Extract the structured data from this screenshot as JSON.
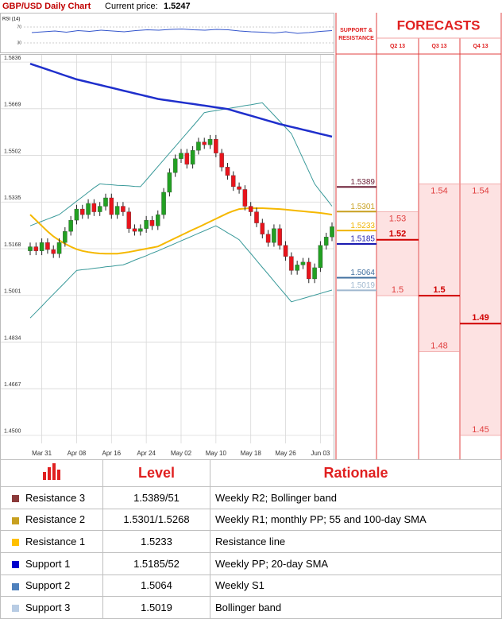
{
  "header": {
    "title": "GBP/USD Daily Chart",
    "price_label": "Current price:",
    "price": "1.5247"
  },
  "chart_data": [
    {
      "type": "line",
      "title": "RSI (14)",
      "color": "#3355cc",
      "ylim": [
        0,
        100
      ],
      "yticks": [
        70,
        30
      ],
      "values": [
        56,
        58,
        60,
        57,
        61,
        59,
        62,
        60,
        58,
        61,
        63,
        62,
        64,
        65,
        63,
        62,
        64,
        63,
        60,
        58,
        57,
        55,
        58,
        54,
        56,
        59,
        61
      ]
    },
    {
      "type": "candlestick",
      "up_color": "#22a022",
      "down_color": "#e8141c",
      "grid": true,
      "ylim": [
        1.4494,
        1.5859
      ],
      "yticks": [
        {
          "value": 1.45,
          "label": "1.4500"
        },
        1.4667,
        1.4834,
        1.5001,
        1.5168,
        1.5335,
        1.5502,
        1.5669,
        1.5836
      ],
      "categories": [
        null,
        null,
        "Mar 31",
        null,
        null,
        null,
        null,
        null,
        "Apr 08",
        null,
        null,
        null,
        null,
        null,
        "Apr 16",
        null,
        null,
        null,
        null,
        null,
        "Apr 24",
        null,
        null,
        null,
        null,
        null,
        "May 02",
        null,
        null,
        null,
        null,
        null,
        "May 10",
        null,
        null,
        null,
        null,
        null,
        "May 18",
        null,
        null,
        null,
        null,
        null,
        "May 26",
        null,
        null,
        null,
        null,
        null,
        "Jun 03",
        null,
        null
      ],
      "open": [
        1.516,
        1.5175,
        1.516,
        1.519,
        1.5165,
        1.515,
        1.519,
        1.523,
        1.527,
        1.531,
        1.529,
        1.533,
        1.53,
        1.532,
        1.535,
        1.529,
        1.532,
        1.53,
        1.524,
        1.523,
        1.524,
        1.527,
        1.525,
        1.529,
        1.537,
        1.544,
        1.549,
        1.551,
        1.547,
        1.552,
        1.555,
        1.554,
        1.556,
        1.551,
        1.546,
        1.543,
        1.539,
        1.538,
        1.532,
        1.53,
        1.526,
        1.522,
        1.519,
        1.524,
        1.518,
        1.514,
        1.509,
        1.511,
        1.512,
        1.506,
        1.51,
        1.518,
        1.521
      ],
      "high": [
        1.519,
        1.519,
        1.5205,
        1.5205,
        1.518,
        1.5205,
        1.5245,
        1.5285,
        1.5325,
        1.5325,
        1.5345,
        1.5345,
        1.5335,
        1.5365,
        1.5365,
        1.5335,
        1.5335,
        1.5315,
        1.5255,
        1.5255,
        1.5285,
        1.5285,
        1.5305,
        1.5385,
        1.5455,
        1.5505,
        1.5525,
        1.5525,
        1.5535,
        1.5565,
        1.5565,
        1.5575,
        1.5575,
        1.5525,
        1.5475,
        1.5445,
        1.5405,
        1.5395,
        1.5335,
        1.5315,
        1.5275,
        1.5235,
        1.5255,
        1.5255,
        1.5195,
        1.5155,
        1.5125,
        1.5135,
        1.5135,
        1.5115,
        1.5195,
        1.5225,
        1.5262
      ],
      "low": [
        1.5145,
        1.5145,
        1.5145,
        1.515,
        1.5135,
        1.5135,
        1.5175,
        1.5215,
        1.5255,
        1.5275,
        1.5275,
        1.5285,
        1.5285,
        1.5305,
        1.5275,
        1.5275,
        1.5285,
        1.5225,
        1.5215,
        1.5215,
        1.5225,
        1.5235,
        1.5235,
        1.5275,
        1.5355,
        1.5425,
        1.5475,
        1.5455,
        1.5455,
        1.5505,
        1.5525,
        1.5525,
        1.5495,
        1.5445,
        1.5415,
        1.5375,
        1.5365,
        1.5305,
        1.5285,
        1.5245,
        1.5205,
        1.5175,
        1.5175,
        1.5165,
        1.5125,
        1.5075,
        1.5075,
        1.5095,
        1.5045,
        1.5045,
        1.5085,
        1.5165,
        1.5195
      ],
      "close": [
        1.5175,
        1.516,
        1.519,
        1.5165,
        1.515,
        1.519,
        1.523,
        1.527,
        1.531,
        1.529,
        1.533,
        1.53,
        1.532,
        1.535,
        1.529,
        1.532,
        1.53,
        1.524,
        1.523,
        1.524,
        1.527,
        1.525,
        1.529,
        1.537,
        1.544,
        1.549,
        1.551,
        1.547,
        1.552,
        1.555,
        1.554,
        1.556,
        1.551,
        1.546,
        1.543,
        1.539,
        1.538,
        1.532,
        1.53,
        1.526,
        1.522,
        1.519,
        1.524,
        1.518,
        1.514,
        1.509,
        1.511,
        1.512,
        1.506,
        1.51,
        1.518,
        1.521,
        1.5247
      ],
      "series": [
        {
          "color": "#3a9a9a",
          "width": 1,
          "values": [
            1.525,
            1.5258,
            1.5266,
            1.5274,
            1.5282,
            1.529,
            1.5306,
            1.5322,
            1.5338,
            1.5354,
            1.537,
            1.5386,
            1.54,
            1.5398,
            1.5397,
            1.5395,
            1.5394,
            1.5393,
            1.5391,
            1.539,
            1.5414,
            1.5438,
            1.5462,
            1.5486,
            1.551,
            1.5534,
            1.5558,
            1.5582,
            1.5606,
            1.563,
            1.5655,
            1.5659,
            1.5662,
            1.5666,
            1.5669,
            1.5673,
            1.5676,
            1.568,
            1.5683,
            1.5687,
            1.569,
            1.5668,
            1.5646,
            1.5624,
            1.5602,
            1.558,
            1.5535,
            1.549,
            1.5445,
            1.54,
            1.5373,
            1.5347,
            1.532
          ]
        },
        {
          "color": "#3a9a9a",
          "width": 1,
          "values": [
            1.492,
            1.4941,
            1.4962,
            1.4984,
            1.5005,
            1.5026,
            1.5047,
            1.5069,
            1.509,
            1.5093,
            1.5095,
            1.5098,
            1.51,
            1.5103,
            1.5105,
            1.5108,
            1.511,
            1.5118,
            1.5127,
            1.5135,
            1.5143,
            1.5152,
            1.516,
            1.5169,
            1.5178,
            1.5187,
            1.5196,
            1.5205,
            1.5214,
            1.5223,
            1.5232,
            1.5241,
            1.525,
            1.5238,
            1.5225,
            1.5213,
            1.52,
            1.5175,
            1.5151,
            1.5126,
            1.5101,
            1.5077,
            1.5052,
            1.5027,
            1.5003,
            1.4978,
            1.4984,
            1.499,
            1.4996,
            1.5002,
            1.5008,
            1.5014,
            1.502
          ]
        },
        {
          "color": "#f5b800",
          "width": 2,
          "values": [
            1.529,
            1.527,
            1.525,
            1.523,
            1.5212,
            1.5198,
            1.5186,
            1.5175,
            1.5166,
            1.516,
            1.5156,
            1.5153,
            1.5151,
            1.515,
            1.515,
            1.515,
            1.5153,
            1.5156,
            1.516,
            1.5164,
            1.5168,
            1.5172,
            1.5176,
            1.5186,
            1.5196,
            1.5206,
            1.5216,
            1.5226,
            1.5236,
            1.5245,
            1.5255,
            1.5265,
            1.5275,
            1.5285,
            1.5295,
            1.5303,
            1.531,
            1.5312,
            1.5313,
            1.5313,
            1.5313,
            1.5312,
            1.5311,
            1.531,
            1.5308,
            1.5306,
            1.5304,
            1.5302,
            1.53,
            1.5298,
            1.5296,
            1.5293,
            1.529
          ]
        },
        {
          "color": "#1f2fcc",
          "width": 2.5,
          "values": [
            1.583,
            1.5823,
            1.5816,
            1.5809,
            1.5802,
            1.5795,
            1.5788,
            1.5781,
            1.5774,
            1.5769,
            1.5764,
            1.5759,
            1.5754,
            1.5749,
            1.5744,
            1.5739,
            1.5734,
            1.5729,
            1.5724,
            1.5719,
            1.5714,
            1.5709,
            1.5704,
            1.5701,
            1.5698,
            1.5695,
            1.5692,
            1.5689,
            1.5686,
            1.5683,
            1.568,
            1.5677,
            1.5674,
            1.5671,
            1.5668,
            1.5662,
            1.5656,
            1.565,
            1.5644,
            1.5638,
            1.5632,
            1.5626,
            1.562,
            1.5614,
            1.5609,
            1.5604,
            1.5599,
            1.5594,
            1.5589,
            1.5584,
            1.5579,
            1.5574,
            1.5569
          ]
        }
      ]
    }
  ],
  "support_resistance": {
    "title": "SUPPORT & RESISTANCE"
  },
  "levels": [
    {
      "name": "Resistance 3",
      "value": 1.5389,
      "color": "#6b1f36",
      "swatch": "#8b3a3a",
      "level": "1.5389/51",
      "rationale": "Weekly R2; Bollinger band"
    },
    {
      "name": "Resistance 2",
      "value": 1.5301,
      "color": "#c8a020",
      "swatch": "#c8a020",
      "level": "1.5301/1.5268",
      "rationale": "Weekly R1; monthly PP; 55 and 100-day SMA"
    },
    {
      "name": "Resistance 1",
      "value": 1.5233,
      "color": "#f0b400",
      "swatch": "#ffc000",
      "level": "1.5233",
      "rationale": "Resistance line"
    },
    {
      "name": "Support 1",
      "value": 1.5185,
      "color": "#1a1ab0",
      "swatch": "#0000cc",
      "level": "1.5185/52",
      "rationale": "Weekly PP; 20-day SMA"
    },
    {
      "name": "Support 2",
      "value": 1.5064,
      "color": "#3f6f9f",
      "swatch": "#4f81bd",
      "level": "1.5064",
      "rationale": "Weekly S1"
    },
    {
      "name": "Support 3",
      "value": 1.5019,
      "color": "#9fb8cf",
      "swatch": "#b8cce4",
      "level": "1.5019",
      "rationale": "Bollinger band"
    }
  ],
  "forecasts": {
    "title": "FORECASTS",
    "quarters": [
      {
        "label": "Q2 13",
        "high": 1.53,
        "mean": 1.52,
        "low": 1.5
      },
      {
        "label": "Q3 13",
        "high": 1.54,
        "mean": 1.5,
        "low": 1.48
      },
      {
        "label": "Q4 13",
        "high": 1.54,
        "mean": 1.49,
        "low": 1.45
      }
    ]
  },
  "table": {
    "headers": [
      "Level",
      "Rationale"
    ]
  }
}
